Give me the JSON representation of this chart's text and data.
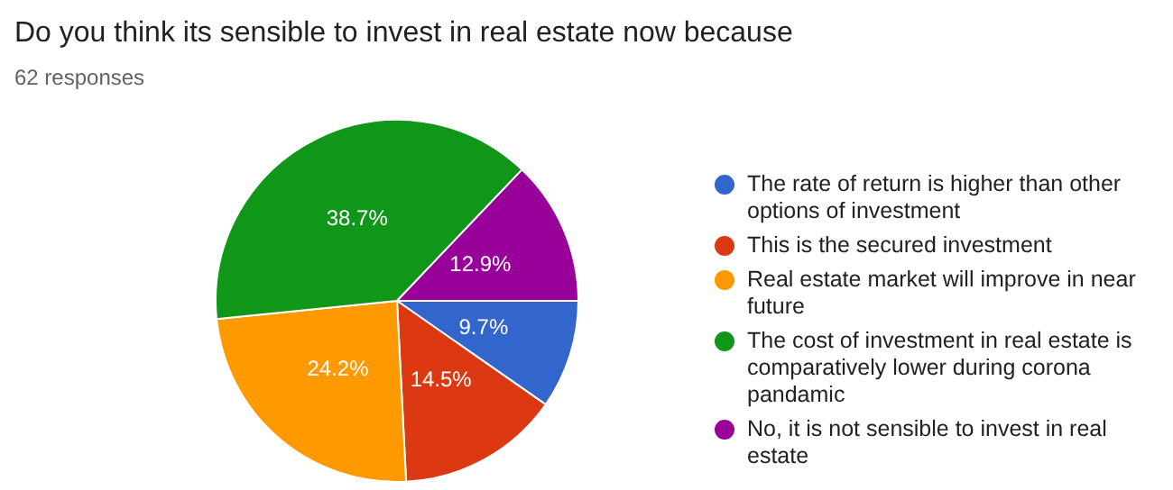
{
  "chart_data": {
    "type": "pie",
    "title": "Do you think its sensible to invest in real estate now because",
    "subtitle": "62 responses",
    "categories": [
      "The rate of return is higher than other options of investment",
      "This is the secured investment",
      "Real estate market will improve in near future",
      "The cost of investment in real estate is comparatively lower during corona pandamic",
      "No, it is not sensible to invest in real estate"
    ],
    "values": [
      9.7,
      14.5,
      24.2,
      38.7,
      12.9
    ],
    "value_labels": [
      "9.7%",
      "14.5%",
      "24.2%",
      "38.7%",
      "12.9%"
    ],
    "colors": [
      "#3366cc",
      "#dc3912",
      "#ff9900",
      "#109618",
      "#990099"
    ],
    "legend": "right"
  }
}
